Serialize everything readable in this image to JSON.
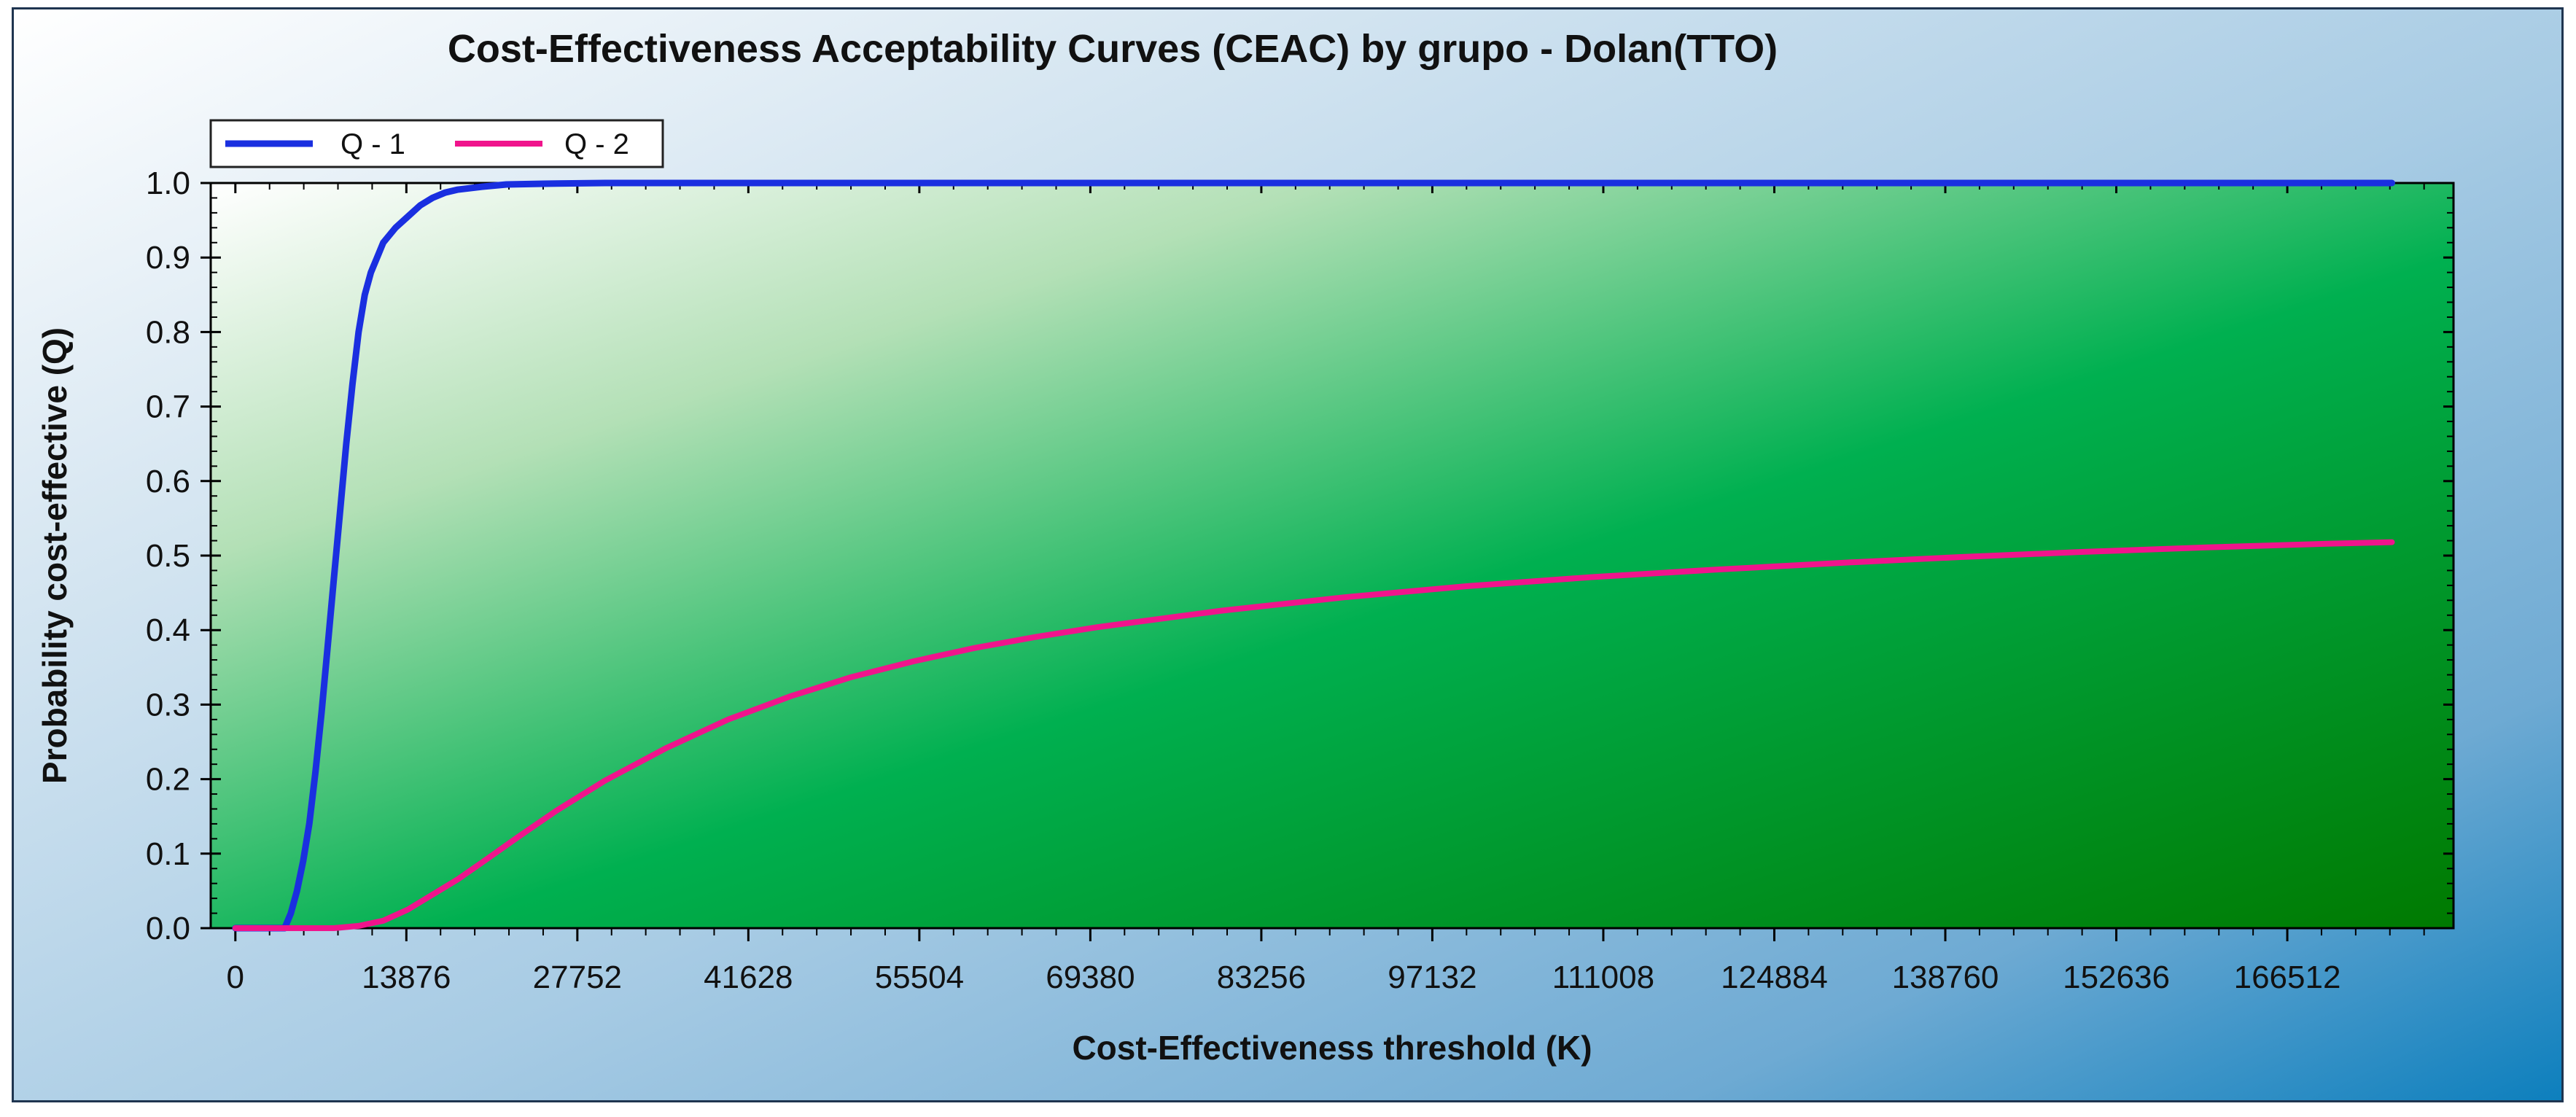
{
  "chart_data": {
    "type": "line",
    "title": "Cost-Effectiveness Acceptability Curves (CEAC) by grupo - Dolan(TTO)",
    "xlabel": "Cost-Effectiveness threshold (K)",
    "ylabel": "Probability cost-effective (Q)",
    "xlim": [
      -2000,
      180000
    ],
    "ylim": [
      0,
      1.0
    ],
    "xticks": [
      0,
      13876,
      27752,
      41628,
      55504,
      69380,
      83256,
      97132,
      111008,
      124884,
      138760,
      152636,
      166512
    ],
    "yticks": [
      0.0,
      0.1,
      0.2,
      0.3,
      0.4,
      0.5,
      0.6,
      0.7,
      0.8,
      0.9,
      1.0
    ],
    "ytick_labels": [
      "0.0",
      "0.1",
      "0.2",
      "0.3",
      "0.4",
      "0.5",
      "0.6",
      "0.7",
      "0.8",
      "0.9",
      "1.0"
    ],
    "legend_position": "top-left",
    "series": [
      {
        "name": "Q - 1",
        "color": "#1a2fe0",
        "x": [
          0,
          3000,
          4000,
          4500,
          5000,
          5500,
          6000,
          6500,
          7000,
          7500,
          8000,
          8500,
          9000,
          9500,
          10000,
          10500,
          11000,
          11500,
          12000,
          13000,
          14000,
          15000,
          16000,
          17000,
          18000,
          20000,
          22000,
          25000,
          30000,
          40000,
          60000,
          100000,
          140000,
          175000
        ],
        "y": [
          0.0,
          0.0,
          0.0,
          0.02,
          0.05,
          0.09,
          0.14,
          0.21,
          0.29,
          0.38,
          0.47,
          0.56,
          0.65,
          0.73,
          0.8,
          0.85,
          0.88,
          0.9,
          0.92,
          0.94,
          0.955,
          0.97,
          0.98,
          0.987,
          0.991,
          0.995,
          0.998,
          0.999,
          1.0,
          1.0,
          1.0,
          1.0,
          1.0,
          1.0
        ]
      },
      {
        "name": "Q - 2",
        "color": "#f0148c",
        "x": [
          0,
          5000,
          8000,
          10000,
          12000,
          14000,
          16000,
          18000,
          20000,
          23000,
          26000,
          30000,
          35000,
          40000,
          45000,
          50000,
          55000,
          60000,
          65000,
          70000,
          80000,
          90000,
          100000,
          110000,
          120000,
          130000,
          140000,
          150000,
          160000,
          170000,
          175000
        ],
        "y": [
          0.0,
          0.0,
          0.0,
          0.003,
          0.01,
          0.025,
          0.045,
          0.065,
          0.088,
          0.123,
          0.157,
          0.198,
          0.242,
          0.28,
          0.311,
          0.337,
          0.358,
          0.376,
          0.391,
          0.404,
          0.426,
          0.444,
          0.459,
          0.471,
          0.481,
          0.49,
          0.498,
          0.505,
          0.511,
          0.516,
          0.518
        ]
      }
    ]
  }
}
